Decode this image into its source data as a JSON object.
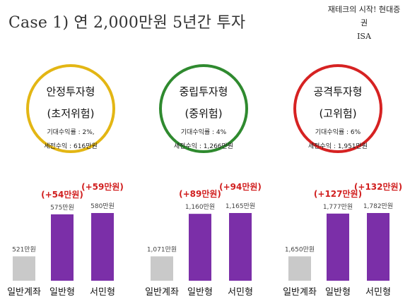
{
  "title": "Case 1) 연 2,000만원 5년간 투자",
  "brand": {
    "line1": "재테크의 시작! 현대증권",
    "line2": "ISA"
  },
  "colors": {
    "stable": "#e3b614",
    "neutral": "#2f8a2f",
    "aggressive": "#d62222",
    "bar_general": "#c9c9c9",
    "bar_isa": "#7b2fa8",
    "gain_text": "#d11f1f"
  },
  "chart_data": [
    {
      "type": "bar",
      "profile": {
        "name": "안정투자형",
        "risk": "(초저위험)",
        "expected_rate": "기대수익률 : 2%,",
        "net_return": "세전수익 : 616만원",
        "color": "#e3b614"
      },
      "categories": [
        "일반계좌",
        "일반형",
        "서민형"
      ],
      "values": [
        521,
        575,
        580
      ],
      "value_labels": [
        "521만원",
        "575만원",
        "580만원"
      ],
      "gain_labels": [
        "",
        "(+54만원)",
        "(+59만원)"
      ]
    },
    {
      "type": "bar",
      "profile": {
        "name": "중립투자형",
        "risk": "(중위험)",
        "expected_rate": "기대수익률 : 4%",
        "net_return": "세전수익 : 1,266만원",
        "color": "#2f8a2f"
      },
      "categories": [
        "일반계좌",
        "일반형",
        "서민형"
      ],
      "values": [
        1071,
        1160,
        1165
      ],
      "value_labels": [
        "1,071만원",
        "1,160만원",
        "1,165만원"
      ],
      "gain_labels": [
        "",
        "(+89만원)",
        "(+94만원)"
      ]
    },
    {
      "type": "bar",
      "profile": {
        "name": "공격투자형",
        "risk": "(고위험)",
        "expected_rate": "기대수익률 : 6%",
        "net_return": "세전수익 : 1,951만원",
        "color": "#d62222"
      },
      "categories": [
        "일반계좌",
        "일반형",
        "서민형"
      ],
      "values": [
        1650,
        1777,
        1782
      ],
      "value_labels": [
        "1,650만원",
        "1,777만원",
        "1,782만원"
      ],
      "gain_labels": [
        "",
        "(+127만원)",
        "(+132만원)"
      ]
    }
  ]
}
